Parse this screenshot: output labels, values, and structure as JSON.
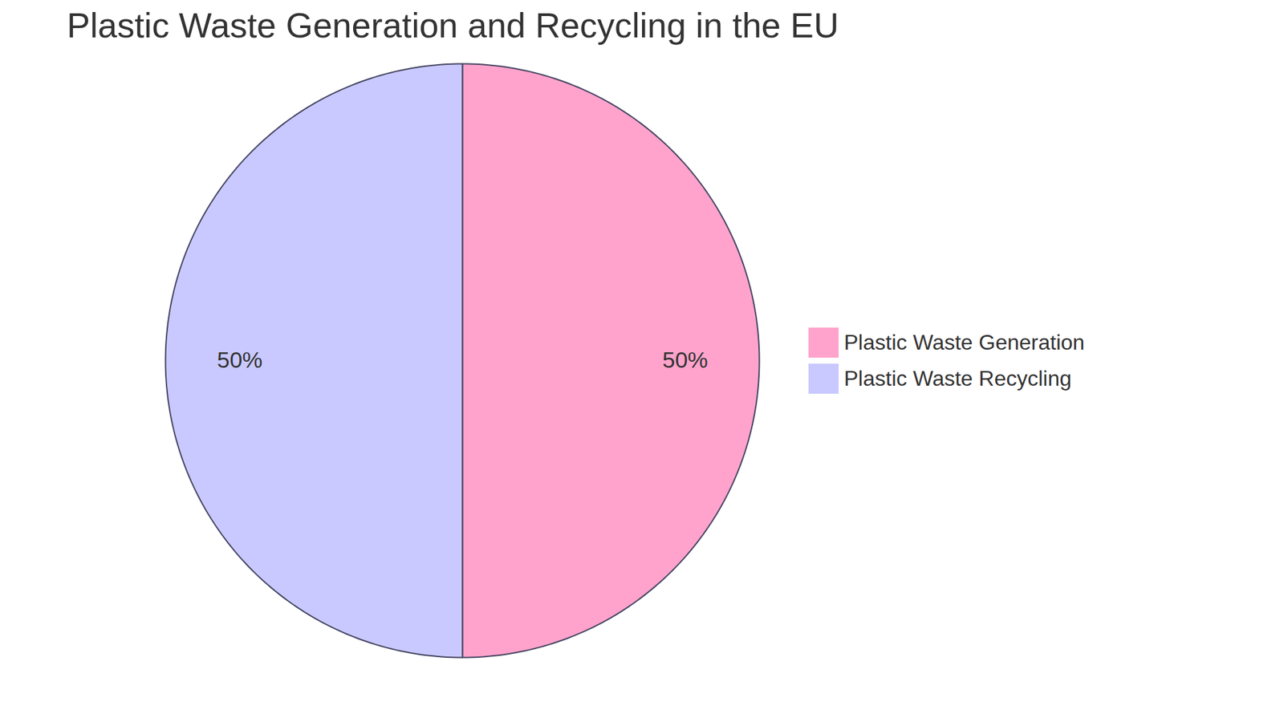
{
  "chart_data": {
    "type": "pie",
    "title": "Plastic Waste Generation and Recycling in the EU",
    "categories": [
      "Plastic Waste Generation",
      "Plastic Waste Recycling"
    ],
    "values": [
      50,
      50
    ],
    "value_labels": [
      "50%",
      "50%"
    ],
    "colors": [
      "#ffa3cc",
      "#c9c9ff"
    ],
    "data_labels": true,
    "legend": "right"
  }
}
